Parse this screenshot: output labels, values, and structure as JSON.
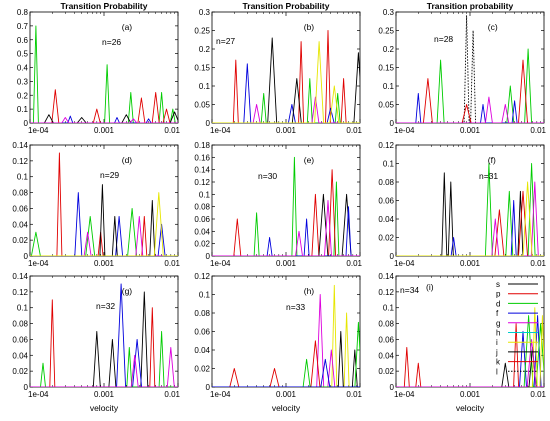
{
  "chart_data": [
    {
      "type": "line",
      "panel_label": "(a)",
      "annotation": "n=26",
      "title": "Transition Probability",
      "xlabel": "",
      "ylabel": "",
      "xscale": "log",
      "xlim": [
        0.0001,
        0.01
      ],
      "ylim": [
        0,
        0.8
      ],
      "x_ticks": [
        "1e-04",
        "0.001",
        "0.01"
      ],
      "y_ticks": [
        "0",
        "0.1",
        "0.2",
        "0.3",
        "0.4",
        "0.5",
        "0.6",
        "0.7",
        "0.8"
      ],
      "series": [
        {
          "color": "#00cc00",
          "peaks": [
            [
              0.00012,
              0.7
            ],
            [
              0.0011,
              0.42
            ],
            [
              0.0023,
              0.22
            ],
            [
              0.006,
              0.22
            ],
            [
              0.0085,
              0.1
            ]
          ]
        },
        {
          "color": "#e00000",
          "peaks": [
            [
              0.00022,
              0.24
            ],
            [
              0.0008,
              0.1
            ],
            [
              0.0032,
              0.18
            ],
            [
              0.005,
              0.22
            ],
            [
              0.007,
              0.1
            ]
          ]
        },
        {
          "color": "#000000",
          "peaks": [
            [
              0.00018,
              0.06
            ],
            [
              0.0005,
              0.04
            ],
            [
              0.002,
              0.06
            ],
            [
              0.009,
              0.08
            ]
          ]
        },
        {
          "color": "#0000dd",
          "peaks": [
            [
              0.00035,
              0.05
            ],
            [
              0.0015,
              0.04
            ],
            [
              0.004,
              0.03
            ]
          ]
        },
        {
          "color": "#dd00dd",
          "peaks": [
            [
              0.0003,
              0.04
            ],
            [
              0.0025,
              0.03
            ]
          ]
        }
      ]
    },
    {
      "type": "line",
      "panel_label": "(b)",
      "annotation": "n=27",
      "title": "Transition Probability",
      "xlabel": "",
      "ylabel": "",
      "xscale": "log",
      "xlim": [
        0.0001,
        0.01
      ],
      "ylim": [
        0,
        0.3
      ],
      "x_ticks": [
        "1e-04",
        "0.001",
        "0.01"
      ],
      "y_ticks": [
        "0",
        "0.05",
        "0.1",
        "0.15",
        "0.2",
        "0.25",
        "0.3"
      ],
      "series": [
        {
          "color": "#e00000",
          "peaks": [
            [
              0.00021,
              0.17
            ],
            [
              0.0016,
              0.22
            ],
            [
              0.0037,
              0.25
            ],
            [
              0.006,
              0.12
            ]
          ]
        },
        {
          "color": "#0000dd",
          "peaks": [
            [
              0.0003,
              0.16
            ],
            [
              0.0012,
              0.05
            ],
            [
              0.004,
              0.04
            ]
          ]
        },
        {
          "color": "#000000",
          "peaks": [
            [
              0.00065,
              0.23
            ],
            [
              0.0014,
              0.12
            ],
            [
              0.0095,
              0.19
            ]
          ]
        },
        {
          "color": "#00cc00",
          "peaks": [
            [
              0.0005,
              0.08
            ],
            [
              0.0021,
              0.12
            ],
            [
              0.005,
              0.08
            ]
          ]
        },
        {
          "color": "#dd00dd",
          "peaks": [
            [
              0.0004,
              0.05
            ],
            [
              0.0025,
              0.07
            ]
          ]
        },
        {
          "color": "#e6e600",
          "peaks": [
            [
              0.0028,
              0.22
            ],
            [
              0.0045,
              0.1
            ]
          ]
        }
      ]
    },
    {
      "type": "line",
      "panel_label": "(c)",
      "annotation": "n=28",
      "title": "Transition probability",
      "xlabel": "",
      "ylabel": "",
      "xscale": "log",
      "xlim": [
        0.0001,
        0.01
      ],
      "ylim": [
        0,
        0.3
      ],
      "x_ticks": [
        "1e-04",
        "0.001",
        "0.01"
      ],
      "y_ticks": [
        "0",
        "0.05",
        "0.1",
        "0.15",
        "0.2",
        "0.25",
        "0.3"
      ],
      "series": [
        {
          "color": "#000000",
          "dotted": true,
          "peaks": [
            [
              0.0009,
              0.29
            ],
            [
              0.0011,
              0.25
            ]
          ]
        },
        {
          "color": "#00cc00",
          "peaks": [
            [
              0.0004,
              0.17
            ],
            [
              0.0035,
              0.1
            ],
            [
              0.0061,
              0.2
            ]
          ]
        },
        {
          "color": "#e00000",
          "peaks": [
            [
              0.00027,
              0.12
            ],
            [
              0.0009,
              0.05
            ],
            [
              0.0052,
              0.17
            ]
          ]
        },
        {
          "color": "#0000dd",
          "peaks": [
            [
              0.0002,
              0.08
            ],
            [
              0.0015,
              0.05
            ],
            [
              0.004,
              0.06
            ]
          ]
        },
        {
          "color": "#dd00dd",
          "peaks": [
            [
              0.0018,
              0.07
            ],
            [
              0.003,
              0.05
            ]
          ]
        }
      ]
    },
    {
      "type": "line",
      "panel_label": "(d)",
      "annotation": "n=29",
      "title": "",
      "xlabel": "",
      "ylabel": "",
      "xscale": "log",
      "xlim": [
        0.0001,
        0.01
      ],
      "ylim": [
        0,
        0.14
      ],
      "x_ticks": [
        "1e-04",
        "0.001",
        "0.01"
      ],
      "y_ticks": [
        "0",
        "0.02",
        "0.04",
        "0.06",
        "0.08",
        "0.1",
        "0.12",
        "0.14"
      ],
      "series": [
        {
          "color": "#e00000",
          "peaks": [
            [
              0.00025,
              0.13
            ],
            [
              0.0009,
              0.03
            ],
            [
              0.0035,
              0.05
            ]
          ]
        },
        {
          "color": "#0000dd",
          "peaks": [
            [
              0.00045,
              0.08
            ],
            [
              0.0016,
              0.05
            ],
            [
              0.006,
              0.04
            ]
          ]
        },
        {
          "color": "#00cc00",
          "peaks": [
            [
              0.00012,
              0.03
            ],
            [
              0.00065,
              0.05
            ],
            [
              0.0024,
              0.06
            ]
          ]
        },
        {
          "color": "#000000",
          "peaks": [
            [
              0.00095,
              0.09
            ],
            [
              0.0014,
              0.05
            ],
            [
              0.0045,
              0.07
            ]
          ]
        },
        {
          "color": "#dd00dd",
          "peaks": [
            [
              0.0006,
              0.03
            ],
            [
              0.003,
              0.05
            ]
          ]
        },
        {
          "color": "#e6e600",
          "peaks": [
            [
              0.0055,
              0.08
            ]
          ]
        }
      ]
    },
    {
      "type": "line",
      "panel_label": "(e)",
      "annotation": "n=30",
      "title": "",
      "xlabel": "",
      "ylabel": "",
      "xscale": "log",
      "xlim": [
        0.0001,
        0.01
      ],
      "ylim": [
        0,
        0.18
      ],
      "x_ticks": [
        "1e-04",
        "0.001",
        "0.01"
      ],
      "y_ticks": [
        "0",
        "0.02",
        "0.04",
        "0.06",
        "0.08",
        "0.1",
        "0.12",
        "0.14",
        "0.16",
        "0.18"
      ],
      "series": [
        {
          "color": "#00cc00",
          "peaks": [
            [
              0.0013,
              0.16
            ],
            [
              0.0004,
              0.07
            ],
            [
              0.0048,
              0.12
            ]
          ]
        },
        {
          "color": "#e00000",
          "peaks": [
            [
              0.00022,
              0.06
            ],
            [
              0.0025,
              0.1
            ],
            [
              0.0042,
              0.14
            ]
          ]
        },
        {
          "color": "#000000",
          "peaks": [
            [
              0.0032,
              0.1
            ],
            [
              0.0066,
              0.1
            ]
          ]
        },
        {
          "color": "#0000dd",
          "peaks": [
            [
              0.0006,
              0.03
            ],
            [
              0.0019,
              0.06
            ],
            [
              0.007,
              0.08
            ]
          ]
        },
        {
          "color": "#dd00dd",
          "peaks": [
            [
              0.0015,
              0.04
            ],
            [
              0.0037,
              0.09
            ]
          ]
        }
      ]
    },
    {
      "type": "line",
      "panel_label": "(f)",
      "annotation": "n=31",
      "title": "",
      "xlabel": "",
      "ylabel": "",
      "xscale": "log",
      "xlim": [
        0.0001,
        0.01
      ],
      "ylim": [
        0,
        0.12
      ],
      "x_ticks": [
        "1e-04",
        "0.001",
        "0.01"
      ],
      "y_ticks": [
        "0",
        "0.02",
        "0.04",
        "0.06",
        "0.08",
        "0.1",
        "0.12"
      ],
      "series": [
        {
          "color": "#000000",
          "peaks": [
            [
              0.00045,
              0.09
            ],
            [
              0.00055,
              0.08
            ],
            [
              0.0048,
              0.07
            ]
          ]
        },
        {
          "color": "#00cc00",
          "peaks": [
            [
              0.0018,
              0.1
            ],
            [
              0.0034,
              0.07
            ],
            [
              0.0068,
              0.1
            ]
          ]
        },
        {
          "color": "#e00000",
          "peaks": [
            [
              0.0025,
              0.05
            ],
            [
              0.0052,
              0.07
            ]
          ]
        },
        {
          "color": "#0000dd",
          "peaks": [
            [
              0.0006,
              0.02
            ],
            [
              0.0039,
              0.06
            ]
          ]
        },
        {
          "color": "#dd00dd",
          "peaks": [
            [
              0.0022,
              0.04
            ],
            [
              0.0075,
              0.08
            ]
          ]
        },
        {
          "color": "#e6e600",
          "peaks": [
            [
              0.006,
              0.08
            ]
          ]
        }
      ]
    },
    {
      "type": "line",
      "panel_label": "(g)",
      "annotation": "n=32",
      "title": "",
      "xlabel": "velocity",
      "ylabel": "",
      "xscale": "log",
      "xlim": [
        0.0001,
        0.01
      ],
      "ylim": [
        0,
        0.14
      ],
      "x_ticks": [
        "1e-04",
        "0.001",
        "0.01"
      ],
      "y_ticks": [
        "0",
        "0.02",
        "0.04",
        "0.06",
        "0.08",
        "0.1",
        "0.12",
        "0.14"
      ],
      "series": [
        {
          "color": "#e00000",
          "peaks": [
            [
              0.0002,
              0.11
            ],
            [
              0.0045,
              0.1
            ]
          ]
        },
        {
          "color": "#000000",
          "peaks": [
            [
              0.0008,
              0.07
            ],
            [
              0.0013,
              0.06
            ],
            [
              0.0035,
              0.12
            ]
          ]
        },
        {
          "color": "#0000dd",
          "peaks": [
            [
              0.0017,
              0.13
            ],
            [
              0.0028,
              0.06
            ]
          ]
        },
        {
          "color": "#00cc00",
          "peaks": [
            [
              0.00015,
              0.03
            ],
            [
              0.0022,
              0.05
            ],
            [
              0.006,
              0.07
            ]
          ]
        },
        {
          "color": "#dd00dd",
          "peaks": [
            [
              0.0026,
              0.04
            ],
            [
              0.008,
              0.05
            ]
          ]
        }
      ]
    },
    {
      "type": "line",
      "panel_label": "(h)",
      "annotation": "n=33",
      "title": "",
      "xlabel": "velocity",
      "ylabel": "",
      "xscale": "log",
      "xlim": [
        0.0001,
        0.01
      ],
      "ylim": [
        0,
        0.12
      ],
      "x_ticks": [
        "1e-04",
        "0.001",
        "0.01"
      ],
      "y_ticks": [
        "0",
        "0.02",
        "0.04",
        "0.06",
        "0.08",
        "0.1",
        "0.12"
      ],
      "series": [
        {
          "color": "#e6e600",
          "peaks": [
            [
              0.0045,
              0.11
            ],
            [
              0.0066,
              0.08
            ]
          ]
        },
        {
          "color": "#dd00dd",
          "peaks": [
            [
              0.0029,
              0.1
            ],
            [
              0.0041,
              0.04
            ]
          ]
        },
        {
          "color": "#e00000",
          "peaks": [
            [
              0.0002,
              0.02
            ],
            [
              0.0007,
              0.02
            ],
            [
              0.0025,
              0.05
            ]
          ]
        },
        {
          "color": "#000000",
          "peaks": [
            [
              0.0055,
              0.06
            ],
            [
              0.0085,
              0.04
            ]
          ]
        },
        {
          "color": "#00cc00",
          "peaks": [
            [
              0.0019,
              0.03
            ],
            [
              0.0095,
              0.07
            ]
          ]
        },
        {
          "color": "#0000dd",
          "peaks": [
            [
              0.0034,
              0.03
            ]
          ]
        }
      ]
    },
    {
      "type": "line",
      "panel_label": "(i)",
      "annotation": "n=34",
      "title": "",
      "xlabel": "velocity",
      "ylabel": "",
      "xscale": "log",
      "xlim": [
        0.0001,
        0.01
      ],
      "ylim": [
        0,
        0.14
      ],
      "x_ticks": [
        "1e-04",
        "0.001",
        "0.01"
      ],
      "y_ticks": [
        "0",
        "0.02",
        "0.04",
        "0.06",
        "0.08",
        "0.1",
        "0.12",
        "0.14"
      ],
      "series": [
        {
          "color": "#e00000",
          "peaks": [
            [
              0.00014,
              0.05
            ],
            [
              0.0002,
              0.03
            ],
            [
              0.0042,
              0.08
            ]
          ]
        },
        {
          "color": "#0000dd",
          "peaks": [
            [
              0.0052,
              0.07
            ],
            [
              0.0082,
              0.09
            ]
          ]
        },
        {
          "color": "#00cc00",
          "peaks": [
            [
              0.0062,
              0.09
            ],
            [
              0.009,
              0.08
            ]
          ]
        },
        {
          "color": "#e6e600",
          "peaks": [
            [
              0.0075,
              0.1
            ],
            [
              0.0095,
              0.09
            ]
          ]
        },
        {
          "color": "#000000",
          "peaks": [
            [
              0.003,
              0.03
            ],
            [
              0.007,
              0.05
            ]
          ]
        },
        {
          "color": "#dd00dd",
          "peaks": [
            [
              0.0068,
              0.06
            ]
          ]
        }
      ],
      "legend": {
        "placement": "top-right",
        "entries": [
          {
            "label": "s",
            "color": "#000000",
            "dotted": false
          },
          {
            "label": "p",
            "color": "#e00000",
            "dotted": false
          },
          {
            "label": "d",
            "color": "#00cc00",
            "dotted": false
          },
          {
            "label": "f",
            "color": "#0000dd",
            "dotted": false
          },
          {
            "label": "g",
            "color": "#dd00dd",
            "dotted": false
          },
          {
            "label": "h",
            "color": "#00cccc",
            "dotted": false
          },
          {
            "label": "i",
            "color": "#e6e600",
            "dotted": false
          },
          {
            "label": "j",
            "color": "#000000",
            "dotted": false
          },
          {
            "label": "k",
            "color": "#e00000",
            "dotted": false
          },
          {
            "label": "l",
            "color": "#000000",
            "dotted": true
          }
        ]
      }
    }
  ]
}
